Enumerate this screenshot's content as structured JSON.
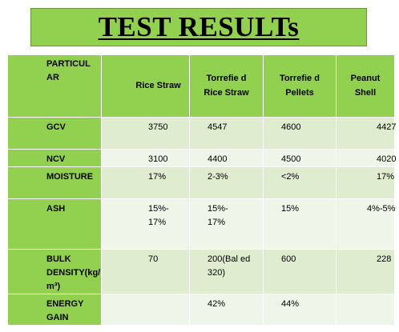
{
  "title": "TEST RESULTs",
  "table": {
    "headers": [
      "PARTICUL AR",
      "Rice Straw",
      "Torrefie d Rice Straw",
      "Torrefie d Pellets",
      "Peanut Shell"
    ],
    "rows": [
      {
        "label": "GCV",
        "values": [
          "3750",
          "4547",
          "4600",
          "4427"
        ]
      },
      {
        "label": "NCV",
        "values": [
          "3100",
          "4400",
          "4500",
          "4020"
        ]
      },
      {
        "label": "MOISTURE",
        "values": [
          "17%",
          "2-3%",
          "<2%",
          "17%"
        ]
      },
      {
        "label": "ASH",
        "values": [
          "15%- 17%",
          "15%- 17%",
          "15%",
          "4%-5%"
        ]
      },
      {
        "label": "BULK DENSITY(kg/ m³)",
        "values": [
          "70",
          "200(Bal ed 320)",
          "600",
          "228"
        ]
      },
      {
        "label": "ENERGY GAIN",
        "values": [
          "",
          "42%",
          "44%",
          ""
        ]
      }
    ]
  },
  "colors": {
    "accent_green": "#92d050",
    "shade_dark": "#dfeccf",
    "shade_light": "#eff5e8"
  }
}
